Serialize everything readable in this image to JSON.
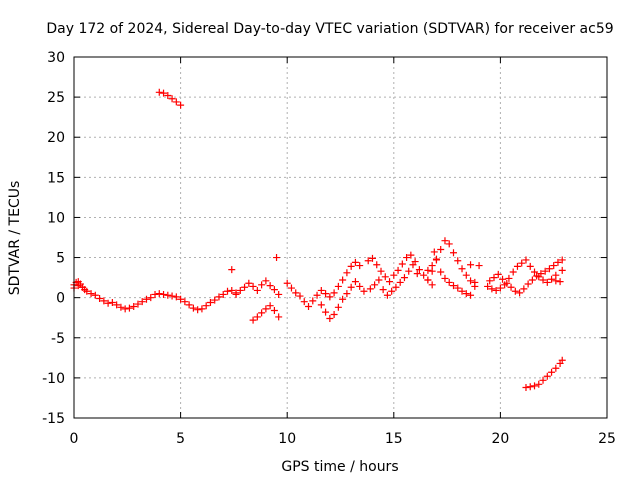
{
  "chart_data": {
    "type": "scatter",
    "title": "Day 172 of 2024, Sidereal Day-to-day VTEC variation (SDTVAR) for receiver ac59",
    "xlabel": "GPS time / hours",
    "ylabel": "SDTVAR / TECUs",
    "xlim": [
      0,
      25
    ],
    "ylim": [
      -15,
      30
    ],
    "xticks": [
      "0",
      "5",
      "10",
      "15",
      "20",
      "25"
    ],
    "yticks": [
      "-15",
      "-10",
      "-5",
      "0",
      "5",
      "10",
      "15",
      "20",
      "25",
      "30"
    ],
    "grid": true,
    "marker": "+",
    "color": "#ff0000",
    "series": [
      {
        "name": "segment-1",
        "x": [
          0.0,
          0.2,
          0.4,
          0.6,
          0.8,
          1.0,
          1.2,
          1.4,
          1.6,
          1.8,
          2.0,
          2.2,
          2.4,
          2.6,
          2.8,
          3.0,
          3.2,
          3.4,
          3.6,
          3.8,
          4.0,
          4.2,
          4.4,
          4.6,
          4.8,
          5.0,
          5.2,
          5.4,
          5.6,
          5.8,
          6.0,
          6.2,
          6.4,
          6.6,
          6.8,
          7.0,
          7.2,
          7.4,
          7.6
        ],
        "y": [
          1.2,
          1.5,
          1.3,
          0.8,
          0.5,
          0.3,
          -0.1,
          -0.4,
          -0.7,
          -0.6,
          -0.9,
          -1.2,
          -1.4,
          -1.3,
          -1.1,
          -0.8,
          -0.5,
          -0.2,
          0.0,
          0.4,
          0.5,
          0.4,
          0.3,
          0.2,
          0.1,
          -0.2,
          -0.5,
          -0.9,
          -1.3,
          -1.5,
          -1.4,
          -1.0,
          -0.6,
          -0.3,
          0.1,
          0.4,
          0.8,
          0.9,
          0.6
        ]
      },
      {
        "name": "segment-2",
        "x": [
          0.0,
          0.1,
          0.2,
          0.3,
          0.4,
          0.5
        ],
        "y": [
          1.6,
          1.9,
          2.0,
          1.7,
          1.3,
          1.0
        ]
      },
      {
        "name": "segment-3",
        "x": [
          4.0,
          4.2,
          4.4,
          4.6,
          4.8,
          5.0
        ],
        "y": [
          25.6,
          25.5,
          25.2,
          24.8,
          24.4,
          24.0
        ]
      },
      {
        "name": "segment-4",
        "x": [
          7.6,
          7.8,
          8.0,
          8.2,
          8.4,
          8.6,
          8.8,
          9.0,
          9.2,
          9.4,
          9.6
        ],
        "y": [
          0.4,
          0.9,
          1.3,
          1.8,
          1.4,
          0.9,
          1.6,
          2.1,
          1.5,
          1.0,
          0.4
        ]
      },
      {
        "name": "segment-5",
        "x": [
          8.4,
          8.6,
          8.8,
          9.0,
          9.2,
          9.4,
          9.6
        ],
        "y": [
          -2.8,
          -2.4,
          -1.9,
          -1.4,
          -1.0,
          -1.6,
          -2.4
        ]
      },
      {
        "name": "segment-6",
        "x": [
          7.4,
          9.5
        ],
        "y": [
          3.5,
          5.0
        ]
      },
      {
        "name": "segment-7",
        "x": [
          10.0,
          10.2,
          10.4,
          10.6,
          10.8,
          11.0,
          11.2,
          11.4,
          11.6,
          11.8,
          12.0,
          12.2,
          12.4,
          12.6,
          12.8,
          13.0,
          13.2,
          13.4,
          13.6
        ],
        "y": [
          1.8,
          1.2,
          0.6,
          0.2,
          -0.5,
          -1.1,
          -0.4,
          0.3,
          -0.9,
          -1.8,
          -2.6,
          -2.1,
          -1.2,
          -0.2,
          0.5,
          1.3,
          2.0,
          1.4,
          0.8
        ]
      },
      {
        "name": "segment-8",
        "x": [
          11.6,
          11.8,
          12.0,
          12.2,
          12.4,
          12.6,
          12.8,
          13.0,
          13.2,
          13.4
        ],
        "y": [
          0.9,
          0.5,
          0.1,
          0.6,
          1.4,
          2.2,
          3.1,
          3.9,
          4.4,
          4.0
        ]
      },
      {
        "name": "segment-9",
        "x": [
          13.8,
          14.0,
          14.2,
          14.4,
          14.6,
          14.8,
          15.0,
          15.2,
          15.4,
          15.6,
          15.8,
          16.0,
          16.2,
          16.4,
          16.6,
          16.8
        ],
        "y": [
          4.6,
          4.9,
          4.1,
          3.3,
          2.6,
          2.0,
          2.8,
          3.4,
          4.2,
          5.0,
          5.3,
          4.5,
          3.5,
          2.8,
          2.2,
          1.6
        ]
      },
      {
        "name": "segment-10",
        "x": [
          13.9,
          14.1,
          14.3,
          14.5,
          14.7,
          14.9,
          15.1,
          15.3,
          15.5,
          15.7,
          15.9,
          16.1
        ],
        "y": [
          1.1,
          1.6,
          2.2,
          1.0,
          0.3,
          0.8,
          1.3,
          1.9,
          2.5,
          3.3,
          4.1,
          3.0
        ]
      },
      {
        "name": "segment-11",
        "x": [
          16.6,
          16.8,
          17.0,
          17.2,
          17.4,
          17.6,
          17.8,
          18.0,
          18.2,
          18.4,
          18.6,
          18.8
        ],
        "y": [
          2.2,
          3.3,
          4.8,
          6.0,
          7.1,
          6.7,
          5.6,
          4.6,
          3.6,
          2.8,
          2.1,
          1.4
        ]
      },
      {
        "name": "segment-12",
        "x": [
          16.6,
          16.8,
          17.0,
          17.2,
          17.4,
          17.6,
          17.8,
          18.0,
          18.2,
          18.4,
          18.6,
          18.8
        ],
        "y": [
          3.4,
          4.0,
          4.7,
          3.2,
          2.4,
          1.9,
          1.5,
          1.2,
          0.8,
          0.5,
          0.3,
          1.9
        ]
      },
      {
        "name": "segment-13",
        "x": [
          16.9,
          18.6,
          19.0
        ],
        "y": [
          5.7,
          4.1,
          4.0
        ]
      },
      {
        "name": "segment-14",
        "x": [
          19.5,
          19.7,
          19.9,
          20.1,
          20.3,
          20.5,
          20.7,
          20.9,
          21.1,
          21.3,
          21.5,
          21.7,
          21.9,
          22.1,
          22.3,
          22.5,
          22.7,
          22.9
        ],
        "y": [
          2.1,
          2.5,
          2.9,
          2.3,
          1.8,
          1.3,
          0.8,
          0.6,
          1.1,
          1.7,
          2.2,
          2.7,
          3.0,
          3.3,
          3.6,
          4.0,
          4.4,
          4.7
        ]
      },
      {
        "name": "segment-15",
        "x": [
          19.4,
          19.6,
          19.8,
          20.0,
          20.2,
          20.4,
          20.6,
          20.8,
          21.0,
          21.2,
          21.4,
          21.6,
          21.8,
          22.0,
          22.2,
          22.4,
          22.6,
          22.9
        ],
        "y": [
          1.4,
          1.1,
          0.9,
          1.2,
          1.6,
          2.4,
          3.2,
          3.9,
          4.3,
          4.7,
          3.9,
          3.2,
          2.6,
          2.2,
          1.9,
          2.3,
          2.8,
          3.4
        ]
      },
      {
        "name": "segment-16",
        "x": [
          22.6,
          22.8
        ],
        "y": [
          2.1,
          2.0
        ]
      },
      {
        "name": "segment-17",
        "x": [
          21.2,
          21.4,
          21.6,
          21.8,
          22.0,
          22.2,
          22.4,
          22.6,
          22.8,
          22.9
        ],
        "y": [
          -11.2,
          -11.1,
          -11.0,
          -10.8,
          -10.3,
          -9.8,
          -9.3,
          -8.8,
          -8.2,
          -7.8
        ]
      }
    ]
  }
}
